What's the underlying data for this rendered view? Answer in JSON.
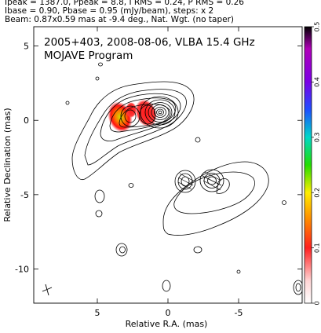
{
  "header": {
    "line1": "Ipeak = 1387.0, Ppeak = 8.8, I RMS = 0.24, P RMS = 0.26",
    "line2": "Ibase = 0.90, Pbase = 0.95 (mJy/beam), steps: x 2",
    "line3": "Beam: 0.87x0.59 mas at -9.4 deg., Nat. Wgt. (no taper)"
  },
  "chart_data": {
    "type": "contour",
    "annotations": [
      "2005+403, 2008-08-06, VLBA 15.4 GHz",
      "MOJAVE Program"
    ],
    "xlabel": "Relative R.A. (mas)",
    "ylabel": "Relative Declination (mas)",
    "xlim": [
      9.5,
      -9.5
    ],
    "ylim": [
      -12.3,
      6.3
    ],
    "xticks": [
      5,
      0,
      -5
    ],
    "xtick_labels": [
      "5",
      "0",
      "-5"
    ],
    "yticks": [
      5,
      0,
      -5,
      -10
    ],
    "ytick_labels": [
      "5",
      "0",
      "-5",
      "-10"
    ],
    "colorbar": {
      "range": [
        0,
        0.5
      ],
      "ticks": [
        0,
        0.1,
        0.2,
        0.3,
        0.4,
        0.5
      ],
      "tick_labels": [
        "0",
        "0.1",
        "0.2",
        "0.3",
        "0.4",
        "0.5"
      ]
    },
    "core": {
      "x": 0.0,
      "y": 0.0
    },
    "components": [
      {
        "x": -1.7,
        "y": -4.1
      },
      {
        "x": -3.5,
        "y": -4.1
      }
    ],
    "beam": {
      "major": 0.87,
      "minor": 0.59,
      "pa": -9.4
    },
    "polarization_peaks": [
      {
        "x": 2.7,
        "y": -0.3,
        "value": 0.27
      },
      {
        "x": 0.9,
        "y": 0.0,
        "value": 0.1
      }
    ]
  }
}
